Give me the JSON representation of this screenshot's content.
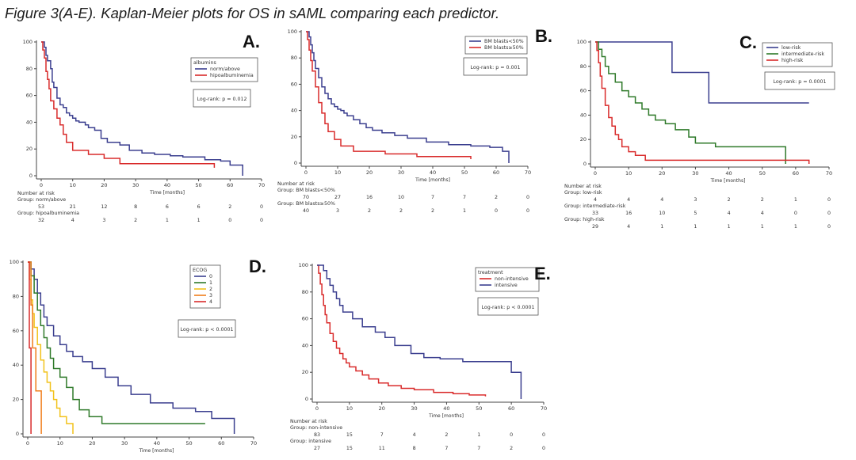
{
  "figure_title": "Figure 3(A-E). Kaplan-Meier plots for OS in sAML comparing each predictor.",
  "chart_data": [
    {
      "id": "A",
      "letter": "A.",
      "type": "line",
      "subtype": "kaplan-meier",
      "xlabel": "Time [months]",
      "xlim": [
        0,
        70
      ],
      "ylim": [
        0,
        100
      ],
      "xticks": [
        0,
        10,
        20,
        30,
        40,
        50,
        60,
        70
      ],
      "yticks": [
        0,
        20,
        40,
        60,
        80,
        100
      ],
      "legend_title": "albumins",
      "logrank": "Log-rank: p = 0.012",
      "series": [
        {
          "name": "norm/above",
          "color": "#3b3f8f",
          "x": [
            0,
            1,
            1.5,
            2,
            3,
            3.5,
            4,
            5,
            6,
            7,
            8,
            9,
            10,
            11,
            12,
            14,
            15,
            17,
            19,
            21,
            25,
            28,
            32,
            36,
            41,
            45,
            52,
            57,
            60,
            64
          ],
          "y": [
            100,
            96,
            90,
            86,
            80,
            70,
            66,
            58,
            53,
            51,
            47,
            45,
            43,
            41,
            40,
            38,
            36,
            34,
            28,
            25,
            23,
            19,
            17,
            16,
            15,
            14,
            12,
            11,
            8,
            0
          ]
        },
        {
          "name": "hipoalbuminemia",
          "color": "#d92b2b",
          "x": [
            0,
            0.5,
            1,
            1.5,
            2,
            2.5,
            3,
            4,
            5,
            6,
            7,
            8,
            10,
            15,
            20,
            25,
            55
          ],
          "y": [
            100,
            94,
            88,
            78,
            72,
            65,
            56,
            50,
            43,
            38,
            31,
            25,
            19,
            16,
            13,
            9,
            6
          ]
        }
      ],
      "risk": {
        "header": "Number at risk",
        "groups": [
          {
            "label": "Group: norm/above",
            "values": [
              53,
              21,
              12,
              8,
              6,
              6,
              2,
              0
            ]
          },
          {
            "label": "Group: hipoalbuminemia",
            "values": [
              32,
              4,
              3,
              2,
              1,
              1,
              0,
              0
            ]
          }
        ]
      }
    },
    {
      "id": "B",
      "letter": "B.",
      "type": "line",
      "subtype": "kaplan-meier",
      "xlabel": "Time [months]",
      "xlim": [
        0,
        70
      ],
      "ylim": [
        0,
        100
      ],
      "xticks": [
        0,
        10,
        20,
        30,
        40,
        50,
        60,
        70
      ],
      "yticks": [
        0,
        20,
        40,
        60,
        80,
        100
      ],
      "legend_title": "",
      "logrank": "Log-rank: p = 0.001",
      "series": [
        {
          "name": "BM blasts<50%",
          "color": "#3b3f8f",
          "x": [
            0,
            1,
            1.5,
            2,
            2.5,
            3,
            4,
            5,
            6,
            7,
            8,
            9,
            10,
            11,
            12,
            13,
            15,
            17,
            19,
            21,
            24,
            28,
            32,
            38,
            45,
            52,
            58,
            62,
            64
          ],
          "y": [
            100,
            96,
            90,
            84,
            78,
            72,
            65,
            58,
            53,
            49,
            45,
            43,
            41,
            40,
            38,
            36,
            33,
            30,
            27,
            25,
            23,
            21,
            19,
            16,
            14,
            13,
            12,
            9,
            0
          ]
        },
        {
          "name": "BM blasts≥50%",
          "color": "#d92b2b",
          "x": [
            0,
            0.5,
            1,
            1.5,
            2,
            3,
            4,
            5,
            6,
            7,
            9,
            11,
            15,
            25,
            35,
            52
          ],
          "y": [
            100,
            94,
            86,
            78,
            70,
            58,
            46,
            38,
            30,
            24,
            18,
            13,
            9,
            7,
            5,
            3
          ]
        }
      ],
      "risk": {
        "header": "Number at risk",
        "groups": [
          {
            "label": "Group: BM blasts<50%",
            "values": [
              70,
              27,
              16,
              10,
              7,
              7,
              2,
              0
            ]
          },
          {
            "label": "Group: BM blasts≥50%",
            "values": [
              40,
              3,
              2,
              2,
              2,
              1,
              0,
              0
            ]
          }
        ]
      }
    },
    {
      "id": "C",
      "letter": "C.",
      "type": "line",
      "subtype": "kaplan-meier",
      "xlabel": "Time [months]",
      "xlim": [
        0,
        70
      ],
      "ylim": [
        0,
        100
      ],
      "xticks": [
        0,
        10,
        20,
        30,
        40,
        50,
        60,
        70
      ],
      "yticks": [
        0,
        20,
        40,
        60,
        80,
        100
      ],
      "legend_title": "",
      "logrank": "Log-rank: p = 0.0001",
      "series": [
        {
          "name": "low-risk",
          "color": "#3b3f8f",
          "x": [
            0,
            23,
            34,
            64
          ],
          "y": [
            100,
            75,
            50,
            50
          ]
        },
        {
          "name": "intermediate-risk",
          "color": "#2f7a2a",
          "x": [
            0,
            1,
            2,
            3,
            4,
            6,
            8,
            10,
            12,
            14,
            16,
            18,
            21,
            24,
            28,
            30,
            36,
            57
          ],
          "y": [
            100,
            94,
            88,
            80,
            74,
            67,
            60,
            55,
            50,
            45,
            40,
            36,
            33,
            28,
            22,
            17,
            14,
            0
          ]
        },
        {
          "name": "high-risk",
          "color": "#d92b2b",
          "x": [
            0,
            0.5,
            1,
            1.5,
            2,
            3,
            4,
            5,
            6,
            7,
            8,
            10,
            12,
            15,
            64
          ],
          "y": [
            100,
            93,
            83,
            72,
            62,
            48,
            38,
            31,
            24,
            20,
            14,
            10,
            7,
            3,
            0
          ]
        }
      ],
      "risk": {
        "header": "Number at risk",
        "groups": [
          {
            "label": "Group: low-risk",
            "values": [
              4,
              4,
              4,
              3,
              2,
              2,
              1,
              0
            ]
          },
          {
            "label": "Group: intermediate-risk",
            "values": [
              33,
              16,
              10,
              5,
              4,
              4,
              0,
              0
            ]
          },
          {
            "label": "Group: high-risk",
            "values": [
              29,
              4,
              1,
              1,
              1,
              1,
              1,
              0
            ]
          }
        ]
      }
    },
    {
      "id": "D",
      "letter": "D.",
      "type": "line",
      "subtype": "kaplan-meier",
      "xlabel": "Time [months]",
      "xlim": [
        0,
        70
      ],
      "ylim": [
        0,
        100
      ],
      "xticks": [
        0,
        10,
        20,
        30,
        40,
        50,
        60,
        70
      ],
      "yticks": [
        0,
        20,
        40,
        60,
        80,
        100
      ],
      "legend_title": "ECOG",
      "logrank": "Log-rank: p < 0.0001",
      "series": [
        {
          "name": "0",
          "color": "#3b3f8f",
          "x": [
            0,
            1,
            2,
            3,
            4,
            5,
            6,
            8,
            10,
            12,
            14,
            17,
            20,
            24,
            28,
            32,
            38,
            45,
            52,
            57,
            64
          ],
          "y": [
            100,
            96,
            90,
            82,
            75,
            68,
            63,
            57,
            52,
            48,
            45,
            42,
            38,
            33,
            28,
            23,
            18,
            15,
            13,
            9,
            0
          ]
        },
        {
          "name": "1",
          "color": "#2f7a2a",
          "x": [
            0,
            1,
            2,
            3,
            4,
            5,
            6,
            7,
            8,
            10,
            12,
            14,
            16,
            19,
            23,
            55
          ],
          "y": [
            100,
            92,
            82,
            72,
            63,
            56,
            50,
            44,
            38,
            33,
            27,
            20,
            14,
            10,
            6,
            6
          ]
        },
        {
          "name": "2",
          "color": "#f2c21b",
          "x": [
            0,
            0.5,
            1,
            1.5,
            2,
            3,
            4,
            5,
            6,
            7,
            8,
            9,
            10,
            12,
            14
          ],
          "y": [
            100,
            90,
            78,
            70,
            62,
            52,
            43,
            36,
            30,
            25,
            20,
            15,
            10,
            6,
            0
          ]
        },
        {
          "name": "3",
          "color": "#f07d1a",
          "x": [
            0,
            1,
            1.5,
            2.5,
            4,
            4.2
          ],
          "y": [
            100,
            75,
            50,
            25,
            25,
            0
          ]
        },
        {
          "name": "4",
          "color": "#d92b2b",
          "x": [
            0,
            0.5,
            1
          ],
          "y": [
            100,
            50,
            0
          ]
        }
      ],
      "risk": null
    },
    {
      "id": "E",
      "letter": "E.",
      "type": "line",
      "subtype": "kaplan-meier",
      "xlabel": "Time [months]",
      "xlim": [
        0,
        70
      ],
      "ylim": [
        0,
        100
      ],
      "xticks": [
        0,
        10,
        20,
        30,
        40,
        50,
        60,
        70
      ],
      "yticks": [
        0,
        20,
        40,
        60,
        80,
        100
      ],
      "legend_title": "treatment",
      "logrank": "Log-rank: p < 0.0001",
      "series": [
        {
          "name": "non-intensive",
          "color": "#d92b2b",
          "x": [
            0,
            0.5,
            1,
            1.5,
            2,
            2.5,
            3,
            4,
            5,
            6,
            7,
            8,
            9,
            10,
            12,
            14,
            16,
            19,
            22,
            26,
            30,
            36,
            42,
            47,
            52
          ],
          "y": [
            100,
            94,
            86,
            78,
            70,
            63,
            57,
            49,
            43,
            38,
            34,
            30,
            27,
            24,
            21,
            18,
            15,
            12,
            10,
            8,
            7,
            5,
            4,
            3,
            2
          ]
        },
        {
          "name": "intensive",
          "color": "#3b3f8f",
          "x": [
            0,
            2,
            3,
            4,
            5,
            6,
            7,
            8,
            11,
            14,
            18,
            21,
            24,
            29,
            33,
            38,
            45,
            57,
            60,
            63
          ],
          "y": [
            100,
            96,
            90,
            85,
            80,
            75,
            70,
            65,
            60,
            54,
            50,
            46,
            40,
            34,
            31,
            30,
            28,
            28,
            20,
            0
          ]
        }
      ],
      "risk": {
        "header": "Number at risk",
        "groups": [
          {
            "label": "Group: non-intensive",
            "values": [
              83,
              15,
              7,
              4,
              2,
              1,
              0,
              0
            ]
          },
          {
            "label": "Group: intensive",
            "values": [
              27,
              15,
              11,
              8,
              7,
              7,
              2,
              0
            ]
          }
        ]
      }
    }
  ]
}
